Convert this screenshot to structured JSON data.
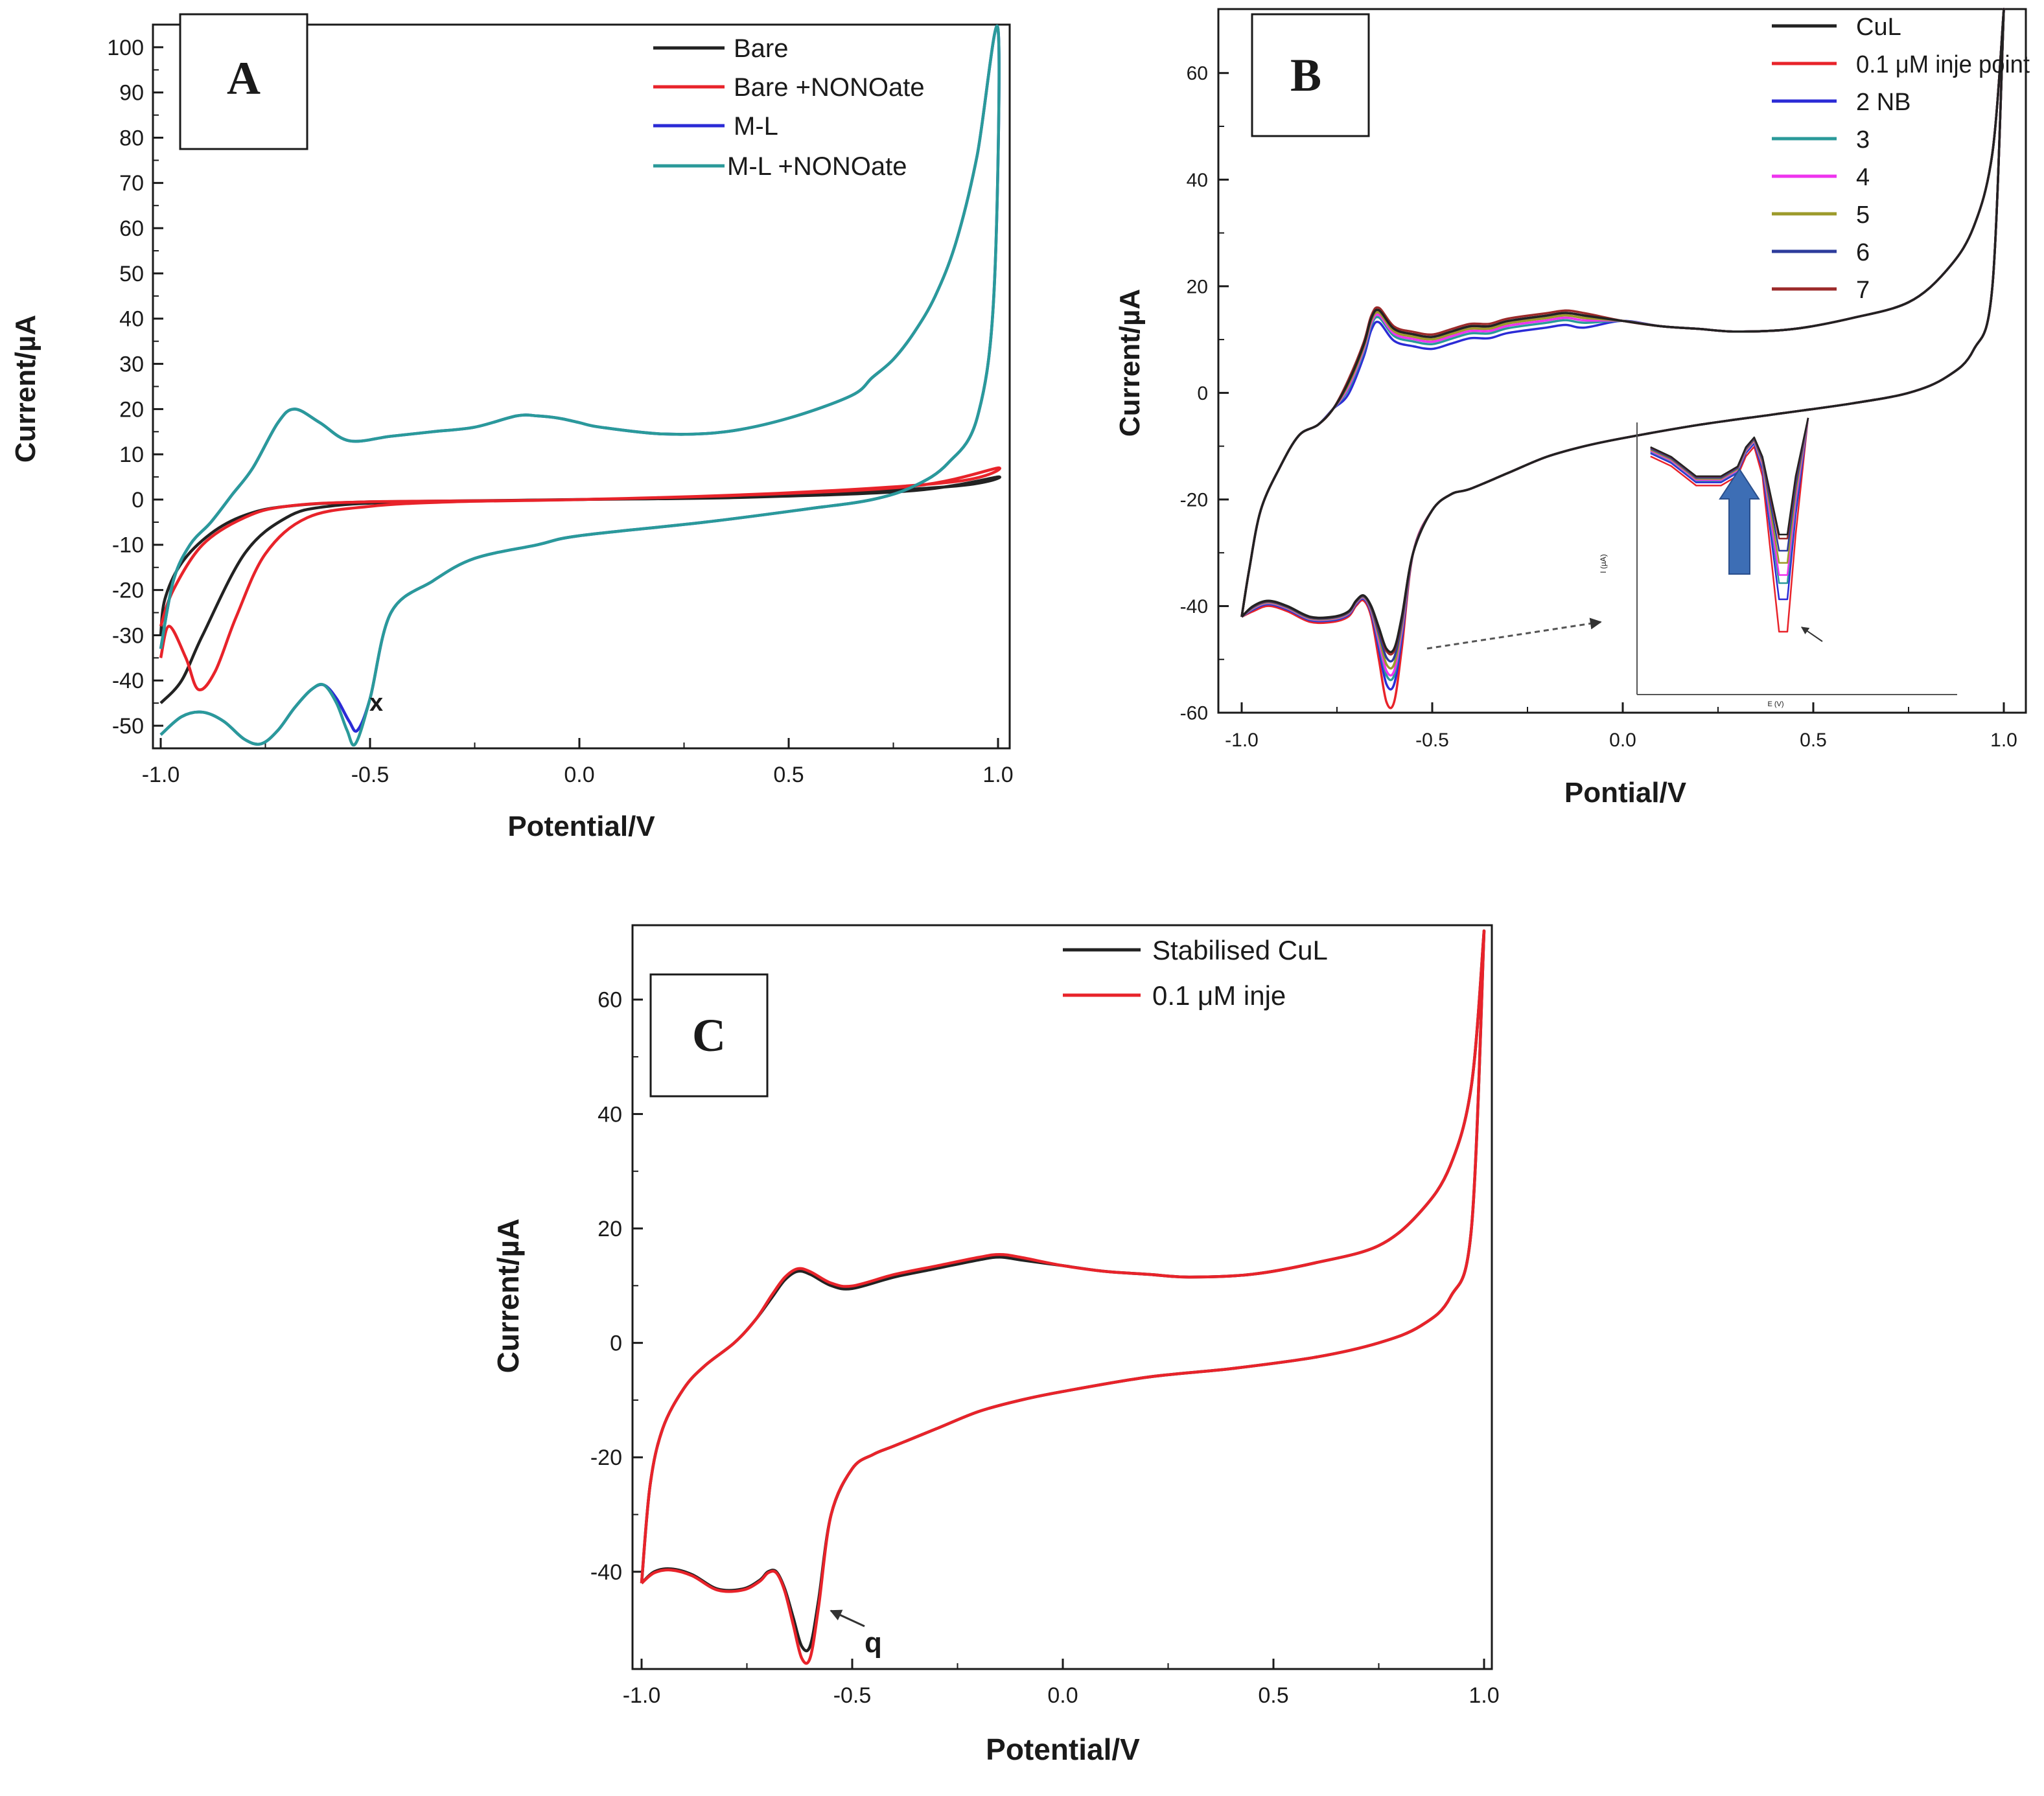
{
  "figure": {
    "description_panels": [
      "A",
      "B",
      "C"
    ]
  },
  "colors": {
    "black": "#222222",
    "red": "#e8232a",
    "blue": "#2b2bd6",
    "teal": "#2a9a9a",
    "magenta": "#ee33ee",
    "olive": "#9c9a2a",
    "navy": "#2d3c9c",
    "maroon": "#9c2a2a",
    "arrow": "#3d6eb5"
  },
  "chart_data": [
    {
      "id": "A",
      "type": "line",
      "panel_label": "A",
      "xlabel": "Potential/V",
      "ylabel": "Current/µA",
      "xlim": [
        -1.0,
        1.0
      ],
      "ylim": [
        -55,
        105
      ],
      "xticks": [
        -1.0,
        -0.5,
        0.0,
        0.5,
        1.0
      ],
      "xtick_labels": [
        "-1.0",
        "-0.5",
        "0.0",
        "0.5",
        "1.0"
      ],
      "yticks": [
        -50,
        -40,
        -30,
        -20,
        -10,
        0,
        10,
        20,
        30,
        40,
        50,
        60,
        70,
        80,
        90,
        100
      ],
      "ytick_labels": [
        "-50",
        "-40",
        "-30",
        "-20",
        "-10",
        "0",
        "10",
        "20",
        "30",
        "40",
        "50",
        "60",
        "70",
        "80",
        "90",
        "100"
      ],
      "legend": [
        "Bare",
        "Bare +NONOate",
        "M-L",
        "M-L +NONOate"
      ],
      "annotations": [
        {
          "text": "x",
          "x": -0.5,
          "y": -50
        }
      ],
      "series": [
        {
          "name": "Bare",
          "color": "#222222",
          "x": [
            -1.0,
            -0.95,
            -0.9,
            -0.8,
            -0.7,
            -0.6,
            -0.4,
            0.0,
            0.4,
            0.8,
            1.0,
            0.9,
            0.5,
            0.0,
            -0.5,
            -0.7,
            -0.8,
            -0.88,
            -0.95,
            -0.99,
            -1.0
          ],
          "y": [
            -45,
            -40,
            -30,
            -12,
            -4,
            -1.5,
            -0.5,
            0,
            0.5,
            2,
            5,
            3,
            1,
            0,
            -0.5,
            -1.5,
            -3.5,
            -7.5,
            -14,
            -22,
            -30
          ]
        },
        {
          "name": "Bare +NONOate",
          "color": "#e8232a",
          "x": [
            -1.0,
            -0.98,
            -0.94,
            -0.91,
            -0.87,
            -0.82,
            -0.75,
            -0.65,
            -0.5,
            -0.3,
            0.0,
            0.4,
            0.8,
            1.0,
            0.9,
            0.5,
            0.0,
            -0.5,
            -0.7,
            -0.8,
            -0.9,
            -0.97,
            -1.0
          ],
          "y": [
            -35,
            -28,
            -35,
            -42,
            -38,
            -26,
            -12,
            -4,
            -1.5,
            -0.5,
            0,
            1,
            3,
            7,
            4,
            1.5,
            0,
            -0.5,
            -1.5,
            -4,
            -10,
            -20,
            -28
          ]
        },
        {
          "name": "M-L",
          "color": "#2b2bd6",
          "x": [
            -1.0,
            -0.95,
            -0.9,
            -0.85,
            -0.8,
            -0.76,
            -0.72,
            -0.68,
            -0.64,
            -0.61,
            -0.58,
            -0.55,
            -0.53,
            -0.5,
            -0.45,
            -0.35,
            -0.25,
            -0.1,
            0.0,
            0.3,
            0.55,
            0.7,
            0.8,
            0.88,
            0.95,
            0.99,
            1.0,
            0.95,
            0.9,
            0.85,
            0.8,
            0.75,
            0.7,
            0.65,
            0.5,
            0.35,
            0.2,
            0.05,
            0.0,
            -0.05,
            -0.1,
            -0.15,
            -0.25,
            -0.35,
            -0.45,
            -0.55,
            -0.62,
            -0.68,
            -0.72,
            -0.78,
            -0.83,
            -0.88,
            -0.93,
            -0.97,
            -1.0
          ],
          "y": [
            -52,
            -48,
            -47,
            -49,
            -53,
            -54,
            -51,
            -46,
            -42,
            -41,
            -44,
            -49,
            -51,
            -44,
            -25,
            -18,
            -13,
            -10,
            -8,
            -5,
            -2,
            0,
            3,
            8,
            18,
            45,
            104,
            76,
            57,
            45,
            37,
            31,
            27,
            23,
            18,
            15,
            14.5,
            16,
            17,
            18,
            18.5,
            18.5,
            16,
            15,
            14,
            13,
            17,
            20,
            17,
            7,
            1,
            -5,
            -10,
            -18,
            -33
          ]
        },
        {
          "name": "M-L +NONOate",
          "color": "#2a9a9a",
          "x": [
            -1.0,
            -0.95,
            -0.9,
            -0.85,
            -0.8,
            -0.76,
            -0.72,
            -0.68,
            -0.64,
            -0.61,
            -0.58,
            -0.555,
            -0.535,
            -0.5,
            -0.45,
            -0.35,
            -0.25,
            -0.1,
            0.0,
            0.3,
            0.55,
            0.7,
            0.8,
            0.88,
            0.95,
            0.99,
            1.0,
            0.95,
            0.9,
            0.85,
            0.8,
            0.75,
            0.7,
            0.65,
            0.5,
            0.35,
            0.2,
            0.05,
            0.0,
            -0.05,
            -0.1,
            -0.15,
            -0.25,
            -0.35,
            -0.45,
            -0.55,
            -0.62,
            -0.68,
            -0.72,
            -0.78,
            -0.83,
            -0.88,
            -0.93,
            -0.97,
            -1.0
          ],
          "y": [
            -52,
            -48,
            -47,
            -49,
            -53,
            -54,
            -51,
            -46,
            -42,
            -41,
            -45,
            -51,
            -54,
            -44,
            -25,
            -18,
            -13,
            -10,
            -8,
            -5,
            -2,
            0,
            3,
            8,
            18,
            45,
            104,
            76,
            57,
            45,
            37,
            31,
            27,
            23,
            18,
            15,
            14.5,
            16,
            17,
            18,
            18.5,
            18.5,
            16,
            15,
            14,
            13,
            17,
            20,
            17,
            7,
            1,
            -5,
            -10,
            -18,
            -33
          ]
        }
      ]
    },
    {
      "id": "B",
      "type": "line",
      "panel_label": "B",
      "xlabel": "Pontial/V",
      "ylabel": "Current/µA",
      "xlim": [
        -1.0,
        1.0
      ],
      "ylim": [
        -60,
        72
      ],
      "xticks": [
        -1.0,
        -0.5,
        0.0,
        0.5,
        1.0
      ],
      "xtick_labels": [
        "-1.0",
        "-0.5",
        "0.0",
        "0.5",
        "1.0"
      ],
      "yticks": [
        -60,
        -40,
        -20,
        0,
        20,
        40,
        60
      ],
      "ytick_labels": [
        "-60",
        "-40",
        "-20",
        "0",
        "20",
        "40",
        "60"
      ],
      "legend": [
        "CuL",
        "0.1 μM inje point",
        "2 NB",
        "3",
        "4",
        "5",
        "6",
        "7"
      ],
      "inset": {
        "ylabel": "I (µA)",
        "xlabel": "E (V)"
      },
      "series": [
        {
          "name": "CuL",
          "color": "#222222",
          "peak": -48,
          "hump": 15.5
        },
        {
          "name": "0.1 μM inje point",
          "color": "#e8232a",
          "peak": -60,
          "hump": 15
        },
        {
          "name": "2 NB",
          "color": "#2b2bd6",
          "peak": -56,
          "hump": 13
        },
        {
          "name": "3",
          "color": "#2a9a9a",
          "peak": -54,
          "hump": 14
        },
        {
          "name": "4",
          "color": "#ee33ee",
          "peak": -53,
          "hump": 14.5
        },
        {
          "name": "5",
          "color": "#9c9a2a",
          "peak": -51.5,
          "hump": 15
        },
        {
          "name": "6",
          "color": "#2d3c9c",
          "peak": -50,
          "hump": 15.5
        },
        {
          "name": "7",
          "color": "#9c2a2a",
          "peak": -48.5,
          "hump": 16
        }
      ],
      "base_curve": {
        "forward_x": [
          -1.0,
          -0.97,
          -0.93,
          -0.88,
          -0.82,
          -0.76,
          -0.72,
          -0.7,
          -0.68,
          -0.66,
          -0.64,
          -0.62,
          -0.6,
          -0.58,
          -0.55,
          -0.5,
          -0.45,
          -0.4,
          -0.3,
          -0.2,
          -0.1,
          0.0,
          0.2,
          0.4,
          0.6,
          0.75,
          0.85,
          0.92,
          0.97,
          1.0
        ],
        "forward_y": [
          -42,
          -40,
          -39,
          -40,
          -42,
          -42,
          -41,
          -39,
          -38,
          -40,
          -44,
          -48,
          -48,
          -42,
          -30,
          -22,
          -19,
          -18,
          -15,
          -12,
          -10,
          -8.5,
          -6,
          -4,
          -2,
          0,
          3,
          8,
          20,
          72
        ],
        "back_x": [
          1.0,
          0.97,
          0.92,
          0.85,
          0.75,
          0.6,
          0.45,
          0.3,
          0.2,
          0.1,
          0.0,
          -0.1,
          -0.15,
          -0.2,
          -0.3,
          -0.35,
          -0.4,
          -0.45,
          -0.5,
          -0.55,
          -0.6,
          -0.64,
          -0.66,
          -0.68,
          -0.72,
          -0.76,
          -0.8,
          -0.85,
          -0.9,
          -0.95,
          -0.98,
          -1.0
        ],
        "back_y": [
          72,
          45,
          31,
          23,
          17,
          14,
          12,
          11.5,
          12,
          12.5,
          13.5,
          14.5,
          15,
          14.5,
          13.5,
          12.5,
          12.5,
          11.5,
          10.5,
          11,
          12,
          15.5,
          14,
          9,
          2,
          -3,
          -6,
          -8,
          -14,
          -22,
          -33,
          -42
        ]
      },
      "annotations": []
    },
    {
      "id": "C",
      "type": "line",
      "panel_label": "C",
      "xlabel": "Potential/V",
      "ylabel": "Current/µA",
      "xlim": [
        -1.0,
        1.0
      ],
      "ylim": [
        -57,
        73
      ],
      "xticks": [
        -1.0,
        -0.5,
        0.0,
        0.5,
        1.0
      ],
      "xtick_labels": [
        "-1.0",
        "-0.5",
        "0.0",
        "0.5",
        "1.0"
      ],
      "yticks": [
        -40,
        -20,
        0,
        20,
        40,
        60
      ],
      "ytick_labels": [
        "-40",
        "-20",
        "0",
        "20",
        "40",
        "60"
      ],
      "legend": [
        "Stabilised CuL",
        "0.1 μM inje"
      ],
      "annotations": [
        {
          "text": "q",
          "x": -0.55,
          "y": -52
        }
      ],
      "series": [
        {
          "name": "Stabilised CuL",
          "color": "#222222",
          "peak": -53,
          "hump": 12
        },
        {
          "name": "0.1 μM inje",
          "color": "#e8232a",
          "peak": -55.5,
          "hump": 12.5
        }
      ],
      "base_curve": {
        "forward_x": [
          -1.0,
          -0.97,
          -0.93,
          -0.88,
          -0.82,
          -0.76,
          -0.72,
          -0.7,
          -0.68,
          -0.66,
          -0.64,
          -0.62,
          -0.6,
          -0.58,
          -0.55,
          -0.5,
          -0.45,
          -0.4,
          -0.3,
          -0.2,
          -0.1,
          0.0,
          0.2,
          0.4,
          0.6,
          0.75,
          0.85,
          0.92,
          0.97,
          1.0
        ],
        "forward_y": [
          -42,
          -40,
          -39.5,
          -40.5,
          -43,
          -43,
          -41.5,
          -40,
          -40,
          -43,
          -48,
          -53,
          -53,
          -45,
          -30,
          -22,
          -19.5,
          -18,
          -15,
          -12,
          -10,
          -8.5,
          -6,
          -4.5,
          -2.5,
          0,
          3,
          8,
          20,
          72
        ],
        "back_x": [
          1.0,
          0.97,
          0.92,
          0.85,
          0.75,
          0.6,
          0.45,
          0.3,
          0.2,
          0.1,
          0.0,
          -0.1,
          -0.15,
          -0.2,
          -0.3,
          -0.4,
          -0.5,
          -0.55,
          -0.6,
          -0.63,
          -0.66,
          -0.69,
          -0.73,
          -0.78,
          -0.85,
          -0.9,
          -0.95,
          -0.98,
          -1.0
        ],
        "back_y": [
          72,
          45,
          31,
          23,
          17,
          14,
          12,
          11.5,
          12,
          12.5,
          13.5,
          14.5,
          15,
          14.5,
          13,
          11.5,
          9.5,
          10,
          12,
          12.5,
          11,
          8,
          4,
          0,
          -4,
          -8,
          -15,
          -25,
          -42
        ]
      }
    }
  ]
}
